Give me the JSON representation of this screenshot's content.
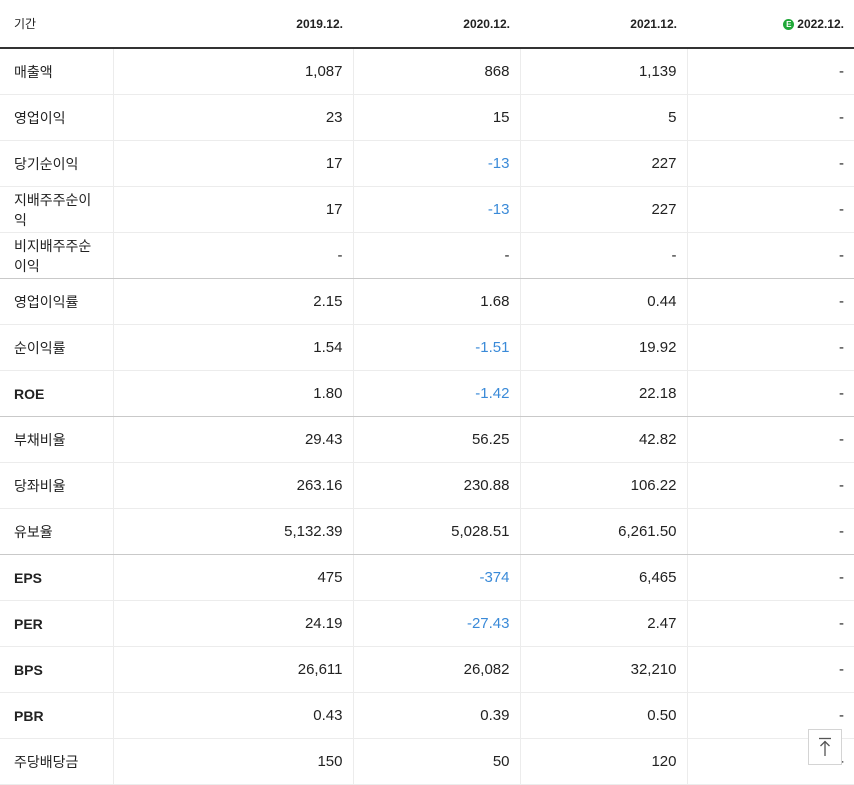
{
  "header": {
    "period_label": "기간",
    "periods": [
      "2019.12.",
      "2020.12.",
      "2021.12.",
      "2022.12."
    ],
    "estimate_mark": "E"
  },
  "rows": [
    {
      "label": "매출액",
      "values": [
        "1,087",
        "868",
        "1,139",
        "-"
      ]
    },
    {
      "label": "영업이익",
      "values": [
        "23",
        "15",
        "5",
        "-"
      ]
    },
    {
      "label": "당기순이익",
      "values": [
        "17",
        "-13",
        "227",
        "-"
      ]
    },
    {
      "label": "지배주주순이익",
      "values": [
        "17",
        "-13",
        "227",
        "-"
      ]
    },
    {
      "label": "비지배주주순이익",
      "values": [
        "-",
        "-",
        "-",
        "-"
      ]
    },
    {
      "label": "영업이익률",
      "values": [
        "2.15",
        "1.68",
        "0.44",
        "-"
      ]
    },
    {
      "label": "순이익률",
      "values": [
        "1.54",
        "-1.51",
        "19.92",
        "-"
      ]
    },
    {
      "label": "ROE",
      "values": [
        "1.80",
        "-1.42",
        "22.18",
        "-"
      ]
    },
    {
      "label": "부채비율",
      "values": [
        "29.43",
        "56.25",
        "42.82",
        "-"
      ]
    },
    {
      "label": "당좌비율",
      "values": [
        "263.16",
        "230.88",
        "106.22",
        "-"
      ]
    },
    {
      "label": "유보율",
      "values": [
        "5,132.39",
        "5,028.51",
        "6,261.50",
        "-"
      ]
    },
    {
      "label": "EPS",
      "values": [
        "475",
        "-374",
        "6,465",
        "-"
      ]
    },
    {
      "label": "PER",
      "values": [
        "24.19",
        "-27.43",
        "2.47",
        "-"
      ]
    },
    {
      "label": "BPS",
      "values": [
        "26,611",
        "26,082",
        "32,210",
        "-"
      ]
    },
    {
      "label": "PBR",
      "values": [
        "0.43",
        "0.39",
        "0.50",
        "-"
      ]
    },
    {
      "label": "주당배당금",
      "values": [
        "150",
        "50",
        "120",
        "-"
      ]
    }
  ],
  "colors": {
    "negative": "#3a8ad8",
    "estimate_badge": "#1fa838"
  },
  "scroll_top_icon": "arrow-up-to-top-icon"
}
